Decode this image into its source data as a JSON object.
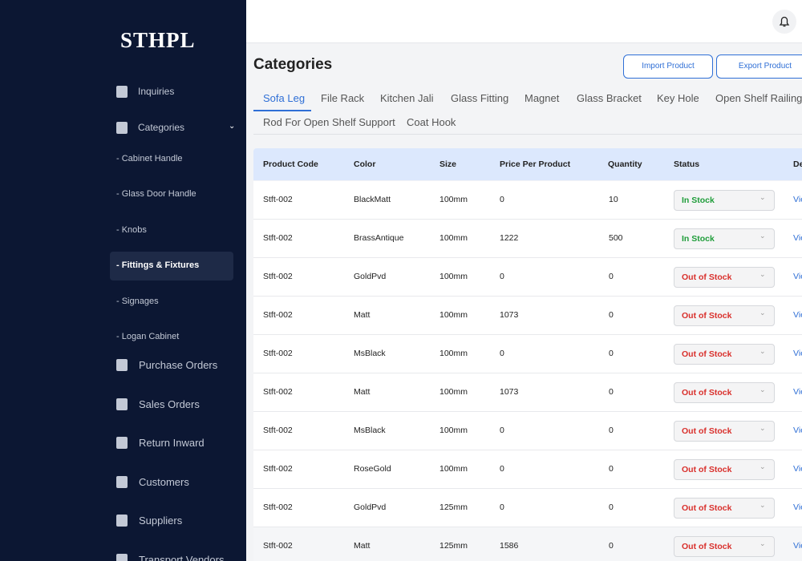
{
  "sidebar": {
    "logo": "STHPL",
    "items": [
      {
        "label": "Inquiries"
      },
      {
        "label": "Categories"
      }
    ],
    "sub_items": [
      "- Cabinet Handle",
      "- Glass Door Handle",
      "- Knobs",
      "- Fittings & Fixtures",
      "- Signages",
      "- Logan Cabinet"
    ],
    "lower_items": [
      "Purchase Orders",
      "Sales Orders",
      "Return Inward",
      "Customers",
      "Suppliers",
      "Transport Vendors"
    ]
  },
  "header": {
    "title": "Categories",
    "buttons": [
      "Import Product",
      "Export Product"
    ]
  },
  "tabs": [
    "Sofa Leg",
    "File Rack",
    "Kitchen Jali",
    "Glass Fitting",
    "Magnet",
    "Glass Bracket",
    "Key Hole",
    "Open Shelf Railing",
    "Rod For Open Shelf Support",
    "Coat Hook"
  ],
  "table": {
    "columns": [
      "Product Code",
      "Color",
      "Size",
      "Price Per Product",
      "Quantity",
      "Status",
      "Details"
    ],
    "rows": [
      {
        "cells": [
          "Stft-002",
          "BlackMatt",
          "100mm",
          "0",
          "10"
        ],
        "status": "In Stock",
        "status_color": "#1f9d3a",
        "action": "View"
      },
      {
        "cells": [
          "Stft-002",
          "BrassAntique",
          "100mm",
          "1222",
          "500"
        ],
        "status": "In Stock",
        "status_color": "#1f9d3a",
        "action": "View"
      },
      {
        "cells": [
          "Stft-002",
          "GoldPvd",
          "100mm",
          "0",
          "0"
        ],
        "status": "Out of Stock",
        "status_color": "#d9302c",
        "action": "View"
      },
      {
        "cells": [
          "Stft-002",
          "Matt",
          "100mm",
          "1073",
          "0"
        ],
        "status": "Out of Stock",
        "status_color": "#d9302c",
        "action": "View"
      },
      {
        "cells": [
          "Stft-002",
          "MsBlack",
          "100mm",
          "0",
          "0"
        ],
        "status": "Out of Stock",
        "status_color": "#d9302c",
        "action": "View"
      },
      {
        "cells": [
          "Stft-002",
          "Matt",
          "100mm",
          "1073",
          "0"
        ],
        "status": "Out of Stock",
        "status_color": "#d9302c",
        "action": "View"
      },
      {
        "cells": [
          "Stft-002",
          "MsBlack",
          "100mm",
          "0",
          "0"
        ],
        "status": "Out of Stock",
        "status_color": "#d9302c",
        "action": "View"
      },
      {
        "cells": [
          "Stft-002",
          "RoseGold",
          "100mm",
          "0",
          "0"
        ],
        "status": "Out of Stock",
        "status_color": "#d9302c",
        "action": "View"
      },
      {
        "cells": [
          "Stft-002",
          "GoldPvd",
          "125mm",
          "0",
          "0"
        ],
        "status": "Out of Stock",
        "status_color": "#d9302c",
        "action": "View"
      },
      {
        "cells": [
          "Stft-002",
          "Matt",
          "125mm",
          "1586",
          "0"
        ],
        "status": "Out of Stock",
        "status_color": "#d9302c",
        "action": "View"
      }
    ]
  }
}
